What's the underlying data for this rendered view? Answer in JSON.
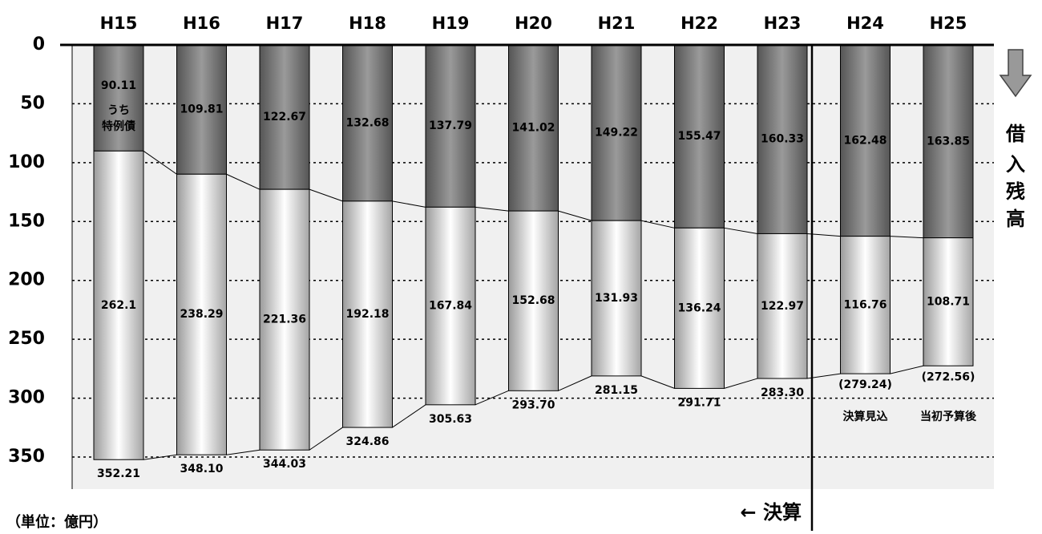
{
  "chart_data": {
    "type": "stacked_bar",
    "categories": [
      "H15",
      "H16",
      "H17",
      "H18",
      "H19",
      "H20",
      "H21",
      "H22",
      "H23",
      "H24",
      "H25"
    ],
    "series": [
      {
        "color": "#666666",
        "values": [
          90.11,
          109.81,
          122.67,
          132.68,
          137.79,
          141.02,
          149.22,
          155.47,
          160.33,
          162.48,
          163.85
        ]
      },
      {
        "color": "#e8e8e8",
        "values": [
          262.1,
          238.29,
          221.36,
          192.18,
          167.84,
          152.68,
          131.93,
          136.24,
          122.97,
          116.76,
          108.71
        ]
      }
    ],
    "totals": {
      "values": [
        352.21,
        348.1,
        344.03,
        324.86,
        305.63,
        293.7,
        281.15,
        291.71,
        283.3,
        279.24,
        272.56
      ],
      "value_labels": [
        "352.21",
        "348.10",
        "344.03",
        "324.86",
        "305.63",
        "293.70",
        "281.15",
        "291.71",
        "283.30",
        "(279.24)",
        "(272.56)"
      ]
    },
    "ylim": [
      0,
      350
    ],
    "yticks": [
      0,
      50,
      100,
      150,
      200,
      250,
      300,
      350
    ],
    "y_inverted": true,
    "grid": true,
    "annotation": [
      "うち",
      "特例債"
    ],
    "status_labels": [
      "決算見込",
      "当初予算後"
    ],
    "vertical_label": [
      "借",
      "入",
      "残",
      "高"
    ],
    "divider_label": "← 決算",
    "unit_label": "（単位：億円）"
  }
}
